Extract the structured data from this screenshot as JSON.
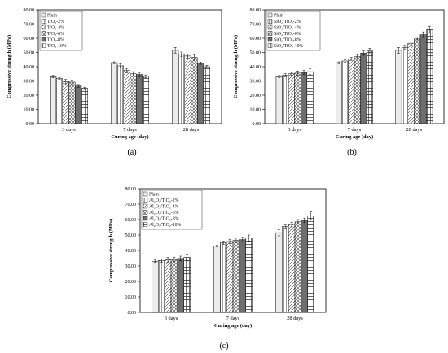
{
  "chart_data": [
    {
      "type": "bar",
      "panel_label": "(a)",
      "ylabel": "Compressive strength (MPa)",
      "xlabel": "Curing age (day)",
      "categories": [
        "3 days",
        "7 days",
        "28 days"
      ],
      "ylim": [
        0,
        80
      ],
      "yticks": [
        "0.00",
        "10.00",
        "20.00",
        "30.00",
        "40.00",
        "50.00",
        "60.00",
        "70.00",
        "80.00"
      ],
      "legend_position": "top-left",
      "error_bars": true,
      "series": [
        {
          "name": "Plain",
          "values": [
            33.0,
            42.8,
            51.5
          ],
          "errors": [
            0.8,
            0.6,
            2.0
          ]
        },
        {
          "name": "TiO₂-2%",
          "values": [
            31.7,
            40.6,
            48.8
          ],
          "errors": [
            0.7,
            1.5,
            1.5
          ]
        },
        {
          "name": "TiO₂-4%",
          "values": [
            29.5,
            37.3,
            47.5
          ],
          "errors": [
            1.5,
            1.5,
            1.5
          ]
        },
        {
          "name": "TiO₂-6%",
          "values": [
            29.2,
            35.0,
            46.5
          ],
          "errors": [
            1.5,
            1.5,
            2.0
          ]
        },
        {
          "name": "TiO₂-8%",
          "values": [
            26.5,
            34.5,
            42.5
          ],
          "errors": [
            1.0,
            1.5,
            0.8
          ]
        },
        {
          "name": "TiO₂-10%",
          "values": [
            24.8,
            33.2,
            40.0
          ],
          "errors": [
            0.8,
            1.0,
            1.0
          ]
        }
      ]
    },
    {
      "type": "bar",
      "panel_label": "(b)",
      "ylabel": "Compressive strength (MPa)",
      "xlabel": "Curing age (day)",
      "categories": [
        "3 days",
        "7 days",
        "28 days"
      ],
      "ylim": [
        0,
        80
      ],
      "yticks": [
        "0.00",
        "10.00",
        "20.00",
        "30.00",
        "40.00",
        "50.00",
        "60.00",
        "70.00",
        "80.00"
      ],
      "legend_position": "top-left",
      "error_bars": true,
      "series": [
        {
          "name": "Plain",
          "values": [
            33.0,
            42.8,
            51.5
          ],
          "errors": [
            0.8,
            0.6,
            2.0
          ]
        },
        {
          "name": "SiO₂/TiO₂-2%",
          "values": [
            34.0,
            44.0,
            53.5
          ],
          "errors": [
            1.0,
            1.0,
            1.5
          ]
        },
        {
          "name": "SiO₂/TiO₂-4%",
          "values": [
            35.0,
            45.5,
            56.5
          ],
          "errors": [
            1.0,
            1.0,
            1.5
          ]
        },
        {
          "name": "SiO₂/TiO₂-6%",
          "values": [
            35.5,
            47.0,
            59.5
          ],
          "errors": [
            1.5,
            1.5,
            1.5
          ]
        },
        {
          "name": "SiO₂/TiO₂-8%",
          "values": [
            36.0,
            49.5,
            62.5
          ],
          "errors": [
            1.5,
            1.5,
            2.0
          ]
        },
        {
          "name": "SiO₂/TiO₂-10%",
          "values": [
            36.5,
            51.0,
            66.0
          ],
          "errors": [
            2.0,
            2.0,
            2.5
          ]
        }
      ]
    },
    {
      "type": "bar",
      "panel_label": "(c)",
      "ylabel": "Compressive strength (MPa)",
      "xlabel": "Curing age (day)",
      "categories": [
        "3 days",
        "7 days",
        "28 days"
      ],
      "ylim": [
        0,
        80
      ],
      "yticks": [
        "0.00",
        "10.00",
        "20.00",
        "30.00",
        "40.00",
        "50.00",
        "60.00",
        "70.00",
        "80.00"
      ],
      "legend_position": "top-left",
      "error_bars": true,
      "series": [
        {
          "name": "Plain",
          "values": [
            33.0,
            42.8,
            51.5
          ],
          "errors": [
            0.8,
            0.6,
            2.0
          ]
        },
        {
          "name": "Al₂O₃/TiO₂-2%",
          "values": [
            33.5,
            45.0,
            55.5
          ],
          "errors": [
            1.0,
            1.0,
            1.0
          ]
        },
        {
          "name": "Al₂O₃/TiO₂-4%",
          "values": [
            34.0,
            45.8,
            56.8
          ],
          "errors": [
            1.5,
            1.5,
            1.5
          ]
        },
        {
          "name": "Al₂O₃/TiO₂-6%",
          "values": [
            34.2,
            46.5,
            58.5
          ],
          "errors": [
            1.5,
            1.5,
            1.5
          ]
        },
        {
          "name": "Al₂O₃/TiO₂-8%",
          "values": [
            34.8,
            47.0,
            59.5
          ],
          "errors": [
            1.5,
            1.5,
            1.5
          ]
        },
        {
          "name": "Al₂O₃/TiO₂-10%",
          "values": [
            35.5,
            48.0,
            62.5
          ],
          "errors": [
            2.0,
            2.0,
            2.5
          ]
        }
      ]
    }
  ]
}
